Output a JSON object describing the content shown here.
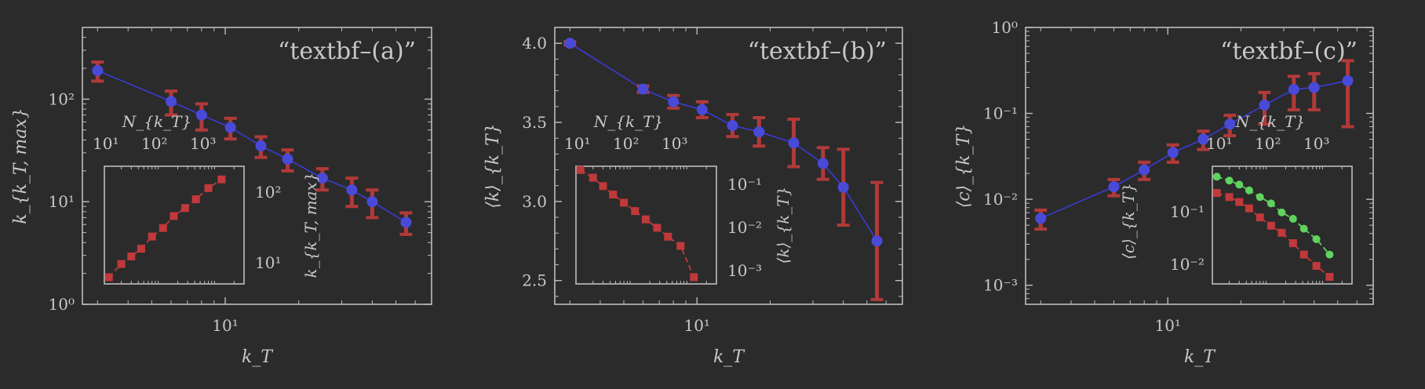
{
  "colors": {
    "background": "#2b2b2b",
    "frame": "#bdbdbd",
    "text": "#c8c8c8",
    "main_line": "#3b3bd6",
    "main_marker": "#4a4ad8",
    "errorbar": "#b03a3a",
    "inset_red": "#c0393b",
    "inset_green": "#5fd35f"
  },
  "chart_data": [
    {
      "type": "line",
      "title": "“textbf–(a)”",
      "xlabel": "k_T",
      "ylabel": "k_{k_T, max}",
      "xscale": "log",
      "yscale": "log",
      "xlim": [
        2.6,
        70
      ],
      "ylim": [
        1,
        500
      ],
      "xticks": [
        {
          "value": 10,
          "label": "10¹"
        }
      ],
      "yticks": [
        {
          "value": 1,
          "label": "10⁰"
        },
        {
          "value": 10,
          "label": "10¹"
        },
        {
          "value": 100,
          "label": "10²"
        }
      ],
      "series": [
        {
          "x": [
            3,
            6,
            8,
            10.5,
            14,
            18,
            25,
            33,
            40,
            55
          ],
          "y": [
            190,
            95,
            70,
            53,
            35,
            26,
            17,
            13,
            10,
            6.3
          ],
          "yerr": [
            40,
            25,
            20,
            12,
            8,
            6,
            4,
            4,
            3,
            1.5
          ]
        }
      ],
      "inset": {
        "xlabel": "N_{k_T}",
        "ylabel": "k_{k_T, max}",
        "xticks": [
          "10¹",
          "10²",
          "10³"
        ],
        "yticks": [
          "10²",
          "10¹"
        ],
        "xscale": "log",
        "yscale": "log",
        "xlim": [
          10,
          3000
        ],
        "ylim": [
          5,
          300
        ],
        "series": [
          {
            "x": [
              12,
              20,
              30,
              45,
              70,
              110,
              170,
              270,
              420,
              700,
              1200
            ],
            "y": [
              6.3,
              10,
              13,
              17,
              26,
              35,
              53,
              70,
              95,
              140,
              190
            ]
          }
        ]
      }
    },
    {
      "type": "line",
      "title": "“textbf–(b)”",
      "xlabel": "k_T",
      "ylabel": "⟨k⟩_{k_T}",
      "xscale": "log",
      "yscale": "linear",
      "xlim": [
        2.6,
        70
      ],
      "ylim": [
        2.35,
        4.1
      ],
      "xticks": [
        {
          "value": 10,
          "label": "10¹"
        }
      ],
      "yticks": [
        {
          "value": 2.5,
          "label": "2.5"
        },
        {
          "value": 3.0,
          "label": "3.0"
        },
        {
          "value": 3.5,
          "label": "3.5"
        },
        {
          "value": 4.0,
          "label": "4.0"
        }
      ],
      "series": [
        {
          "x": [
            3,
            6,
            8,
            10.5,
            14,
            18,
            25,
            33,
            40,
            55
          ],
          "y": [
            4.0,
            3.71,
            3.63,
            3.58,
            3.48,
            3.44,
            3.37,
            3.24,
            3.09,
            2.75
          ],
          "yerr": [
            0.01,
            0.02,
            0.04,
            0.05,
            0.07,
            0.09,
            0.15,
            0.1,
            0.24,
            0.37
          ]
        }
      ],
      "inset": {
        "xlabel": "N_{k_T}",
        "ylabel": "⟨k⟩_{k_T}",
        "xticks": [
          "10¹",
          "10²",
          "10³"
        ],
        "yticks": [
          "10⁻¹",
          "10⁻²",
          "10⁻³"
        ],
        "xscale": "log",
        "yscale": "log",
        "xlim": [
          10,
          3000
        ],
        "ylim": [
          0.0004,
          0.5
        ],
        "series": [
          {
            "x": [
              12,
              20,
              30,
              45,
              70,
              110,
              170,
              270,
              420,
              700,
              1200
            ],
            "y": [
              0.4,
              0.25,
              0.15,
              0.09,
              0.055,
              0.033,
              0.02,
              0.012,
              0.007,
              0.004,
              0.0006
            ]
          }
        ]
      }
    },
    {
      "type": "line",
      "title": "“textbf–(c)”",
      "xlabel": "k_T",
      "ylabel": "⟨c⟩_{k_T}",
      "xscale": "log",
      "yscale": "log",
      "xlim": [
        2.6,
        70
      ],
      "ylim": [
        0.0006,
        1
      ],
      "xticks": [
        {
          "value": 10,
          "label": "10¹"
        }
      ],
      "yticks": [
        {
          "value": 0.001,
          "label": "10⁻³"
        },
        {
          "value": 0.01,
          "label": "10⁻²"
        },
        {
          "value": 0.1,
          "label": "10⁻¹"
        },
        {
          "value": 1,
          "label": "10⁰"
        }
      ],
      "series": [
        {
          "x": [
            3,
            6,
            8,
            10.5,
            14,
            18,
            25,
            33,
            40,
            55
          ],
          "y": [
            0.006,
            0.014,
            0.022,
            0.035,
            0.05,
            0.075,
            0.125,
            0.19,
            0.2,
            0.24
          ],
          "yerr": [
            0.0015,
            0.003,
            0.005,
            0.008,
            0.012,
            0.02,
            0.05,
            0.08,
            0.09,
            0.17
          ]
        }
      ],
      "inset": {
        "xlabel": "N_{k_T}",
        "ylabel": "⟨c⟩_{k_T}",
        "xticks": [
          "10¹",
          "10²",
          "10³"
        ],
        "yticks": [
          "10⁻¹",
          "10⁻²"
        ],
        "xscale": "log",
        "yscale": "log",
        "xlim": [
          10,
          3000
        ],
        "ylim": [
          0.004,
          0.8
        ],
        "series": [
          {
            "color": "green",
            "dashed": true,
            "x": [
              12,
              20,
              30,
              45,
              70,
              110,
              170,
              270,
              420,
              700,
              1200
            ],
            "y": [
              0.5,
              0.42,
              0.35,
              0.27,
              0.2,
              0.15,
              0.1,
              0.075,
              0.048,
              0.03,
              0.015
            ]
          },
          {
            "color": "red",
            "dashed": true,
            "x": [
              12,
              20,
              30,
              45,
              70,
              110,
              170,
              270,
              420,
              700,
              1200
            ],
            "y": [
              0.24,
              0.2,
              0.16,
              0.12,
              0.08,
              0.055,
              0.04,
              0.025,
              0.015,
              0.009,
              0.0055
            ]
          }
        ]
      }
    }
  ]
}
